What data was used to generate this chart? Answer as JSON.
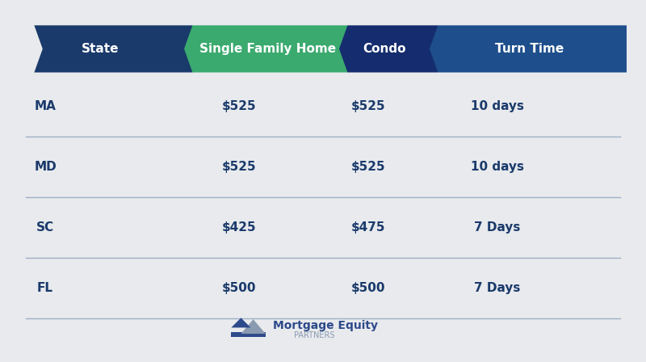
{
  "bg_color": "#e8eaed",
  "header_row": [
    "State",
    "Single Family Home",
    "Condo",
    "Turn Time"
  ],
  "header_colors": [
    "#1a3a6b",
    "#3aaa6e",
    "#152d6e",
    "#1e4f8c"
  ],
  "data_rows": [
    [
      "MA",
      "$525",
      "$525",
      "10 days"
    ],
    [
      "MD",
      "$525",
      "$525",
      "10 days"
    ],
    [
      "SC",
      "$425",
      "$475",
      "7 Days"
    ],
    [
      "FL",
      "$500",
      "$500",
      "7 Days"
    ]
  ],
  "text_color_header": "#ffffff",
  "text_color_data": "#1a3a6b",
  "divider_color": "#a0b0c8",
  "logo_text1": "Mortgage Equity",
  "logo_text2": "PARTNERS",
  "logo_color1": "#2d4a8a",
  "logo_color2": "#8a9ab0"
}
